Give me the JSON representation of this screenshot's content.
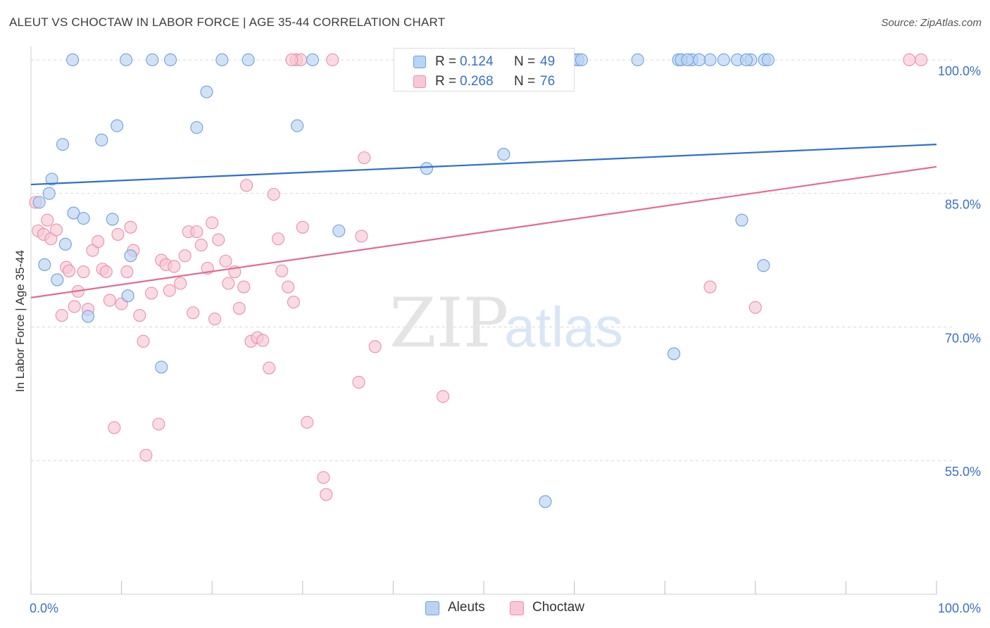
{
  "title": "ALEUT VS CHOCTAW IN LABOR FORCE | AGE 35-44 CORRELATION CHART",
  "source": "Source: ZipAtlas.com",
  "watermark": {
    "zip": "ZIP",
    "atlas": "atlas"
  },
  "colors": {
    "aleut_fill": "#b9d3f3",
    "aleut_stroke": "#6f9fe0",
    "aleut_line": "#2f6fcb",
    "choctaw_fill": "#f8c8d6",
    "choctaw_stroke": "#ec8fab",
    "choctaw_line": "#e26b92",
    "value_text": "#3a6fc4",
    "grid": "#d8d8d8"
  },
  "legend_top": [
    {
      "r_label": "R =",
      "r_value": "0.124",
      "n_label": "N =",
      "n_value": "49"
    },
    {
      "r_label": "R =",
      "r_value": "0.268",
      "n_label": "N =",
      "n_value": "76"
    }
  ],
  "legend_bottom": [
    "Aleuts",
    "Choctaw"
  ],
  "chart_data": {
    "type": "scatter",
    "title": "ALEUT VS CHOCTAW IN LABOR FORCE | AGE 35-44 CORRELATION CHART",
    "xlabel": "",
    "ylabel": "In Labor Force | Age 35-44",
    "xlim": [
      0,
      100
    ],
    "ylim": [
      40,
      101.5
    ],
    "x_tick_labels": [
      {
        "x": 0,
        "label": "0.0%"
      },
      {
        "x": 100,
        "label": "100.0%"
      }
    ],
    "y_tick_labels": [
      {
        "y": 100,
        "label": "100.0%"
      },
      {
        "y": 85,
        "label": "85.0%"
      },
      {
        "y": 70,
        "label": "70.0%"
      },
      {
        "y": 55,
        "label": "55.0%"
      }
    ],
    "grid": true,
    "legend": "bottom-center",
    "series": [
      {
        "name": "Aleuts",
        "r": 0.124,
        "n": 49,
        "trend": [
          [
            0,
            86.0
          ],
          [
            100,
            90.5
          ]
        ],
        "points": [
          [
            0.9,
            84.0
          ],
          [
            1.5,
            77.0
          ],
          [
            2.0,
            85.0
          ],
          [
            2.3,
            86.6
          ],
          [
            2.9,
            75.3
          ],
          [
            3.5,
            90.5
          ],
          [
            3.8,
            79.3
          ],
          [
            4.6,
            100.0
          ],
          [
            4.7,
            82.8
          ],
          [
            5.8,
            82.2
          ],
          [
            6.3,
            71.2
          ],
          [
            7.8,
            91.0
          ],
          [
            9.0,
            82.1
          ],
          [
            9.5,
            92.6
          ],
          [
            10.5,
            100.0
          ],
          [
            10.7,
            73.5
          ],
          [
            11.0,
            78.0
          ],
          [
            13.4,
            100.0
          ],
          [
            14.4,
            65.5
          ],
          [
            15.4,
            100.0
          ],
          [
            18.3,
            92.4
          ],
          [
            19.4,
            96.4
          ],
          [
            21.1,
            100.0
          ],
          [
            24.0,
            100.0
          ],
          [
            29.4,
            92.6
          ],
          [
            31.1,
            100.0
          ],
          [
            34.0,
            80.8
          ],
          [
            43.7,
            87.8
          ],
          [
            52.2,
            89.4
          ],
          [
            56.8,
            50.4
          ],
          [
            60.0,
            100.0
          ],
          [
            60.4,
            100.0
          ],
          [
            60.8,
            100.0
          ],
          [
            67.0,
            100.0
          ],
          [
            78.5,
            82.0
          ],
          [
            80.9,
            76.9
          ],
          [
            81.0,
            100.0
          ],
          [
            71.0,
            67.0
          ],
          [
            73.0,
            100.0
          ],
          [
            75.0,
            100.0
          ],
          [
            76.5,
            100.0
          ],
          [
            78.0,
            100.0
          ],
          [
            79.5,
            100.0
          ],
          [
            71.5,
            100.0
          ],
          [
            71.8,
            100.0
          ],
          [
            79.0,
            100.0
          ],
          [
            81.4,
            100.0
          ],
          [
            72.5,
            100.0
          ],
          [
            73.8,
            100.0
          ]
        ]
      },
      {
        "name": "Choctaw",
        "r": 0.268,
        "n": 76,
        "trend": [
          [
            0,
            73.3
          ],
          [
            100,
            88.0
          ]
        ],
        "points": [
          [
            0.5,
            84.0
          ],
          [
            0.8,
            80.8
          ],
          [
            1.4,
            80.4
          ],
          [
            1.8,
            82.0
          ],
          [
            2.2,
            79.9
          ],
          [
            2.8,
            80.9
          ],
          [
            3.4,
            71.3
          ],
          [
            3.9,
            76.7
          ],
          [
            4.2,
            76.3
          ],
          [
            4.8,
            72.3
          ],
          [
            5.2,
            74.0
          ],
          [
            5.8,
            76.2
          ],
          [
            6.3,
            72.0
          ],
          [
            6.8,
            78.6
          ],
          [
            7.4,
            79.6
          ],
          [
            7.9,
            76.5
          ],
          [
            8.3,
            76.2
          ],
          [
            8.7,
            73.0
          ],
          [
            9.2,
            58.7
          ],
          [
            9.6,
            80.4
          ],
          [
            10.0,
            72.6
          ],
          [
            10.6,
            76.2
          ],
          [
            11.0,
            81.2
          ],
          [
            11.3,
            78.6
          ],
          [
            12.0,
            71.3
          ],
          [
            12.4,
            68.4
          ],
          [
            12.7,
            55.6
          ],
          [
            13.3,
            73.8
          ],
          [
            14.1,
            59.1
          ],
          [
            14.4,
            77.5
          ],
          [
            14.9,
            77.0
          ],
          [
            15.3,
            74.1
          ],
          [
            15.8,
            76.8
          ],
          [
            16.5,
            74.9
          ],
          [
            17.0,
            78.0
          ],
          [
            17.4,
            80.7
          ],
          [
            17.9,
            71.6
          ],
          [
            18.3,
            80.7
          ],
          [
            18.8,
            79.2
          ],
          [
            19.5,
            76.6
          ],
          [
            20.0,
            81.7
          ],
          [
            20.3,
            70.9
          ],
          [
            20.7,
            79.8
          ],
          [
            21.5,
            77.4
          ],
          [
            21.8,
            74.9
          ],
          [
            22.5,
            76.2
          ],
          [
            23.0,
            72.1
          ],
          [
            23.5,
            74.5
          ],
          [
            23.8,
            85.9
          ],
          [
            24.3,
            68.4
          ],
          [
            25.0,
            68.8
          ],
          [
            25.6,
            68.5
          ],
          [
            26.3,
            65.4
          ],
          [
            26.8,
            84.9
          ],
          [
            27.3,
            79.9
          ],
          [
            27.7,
            76.3
          ],
          [
            28.4,
            74.5
          ],
          [
            29.0,
            72.8
          ],
          [
            30.0,
            81.2
          ],
          [
            30.5,
            59.3
          ],
          [
            32.3,
            53.1
          ],
          [
            32.6,
            51.2
          ],
          [
            33.3,
            100.0
          ],
          [
            36.2,
            63.8
          ],
          [
            36.8,
            89.0
          ],
          [
            36.5,
            80.2
          ],
          [
            38.0,
            67.8
          ],
          [
            45.5,
            62.2
          ],
          [
            46.0,
            100.0
          ],
          [
            75.0,
            74.5
          ],
          [
            80.0,
            72.2
          ],
          [
            97.0,
            100.0
          ],
          [
            98.3,
            100.0
          ],
          [
            29.3,
            100.0
          ],
          [
            29.8,
            100.0
          ],
          [
            28.8,
            100.0
          ]
        ]
      }
    ]
  }
}
